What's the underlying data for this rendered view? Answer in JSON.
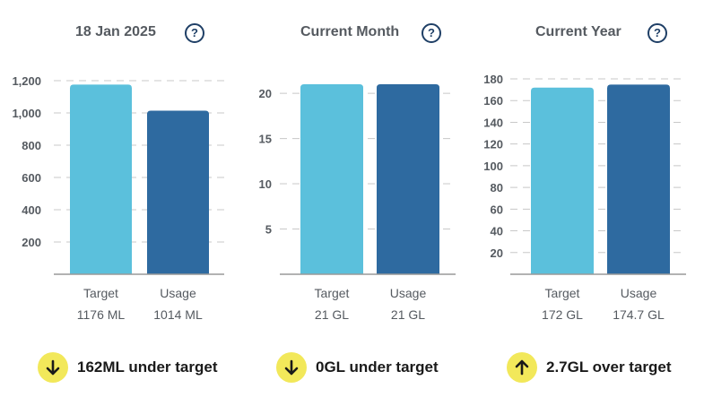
{
  "colors": {
    "target": "#5bc0dc",
    "usage": "#2e6aa0",
    "grid": "#c8c8c8",
    "axis": "#999999",
    "badge": "#f2e85a"
  },
  "panels": [
    {
      "title": "18 Jan 2025",
      "help_icon": "question-circle-icon",
      "chart_data": {
        "type": "bar",
        "categories": [
          "Target",
          "Usage"
        ],
        "values": [
          1176,
          1014
        ],
        "value_labels": [
          "1176 ML",
          "1014 ML"
        ],
        "yticks": [
          200,
          400,
          600,
          800,
          1000,
          1200
        ],
        "ytick_labels": [
          "200",
          "400",
          "600",
          "800",
          "1,000",
          "1,200"
        ],
        "ylim": [
          0,
          1200
        ]
      },
      "summary": {
        "direction": "down",
        "icon": "arrow-down-icon",
        "text": "162ML under target"
      }
    },
    {
      "title": "Current Month",
      "help_icon": "question-circle-icon",
      "chart_data": {
        "type": "bar",
        "categories": [
          "Target",
          "Usage"
        ],
        "values": [
          21,
          21
        ],
        "value_labels": [
          "21 GL",
          "21 GL"
        ],
        "yticks": [
          5,
          10,
          15,
          20
        ],
        "ytick_labels": [
          "5",
          "10",
          "15",
          "20"
        ],
        "ylim": [
          0,
          21
        ]
      },
      "summary": {
        "direction": "down",
        "icon": "arrow-down-icon",
        "text": "0GL under target"
      }
    },
    {
      "title": "Current Year",
      "help_icon": "question-circle-icon",
      "chart_data": {
        "type": "bar",
        "categories": [
          "Target",
          "Usage"
        ],
        "values": [
          172,
          174.7
        ],
        "value_labels": [
          "172 GL",
          "174.7 GL"
        ],
        "yticks": [
          20,
          40,
          60,
          80,
          100,
          120,
          140,
          160,
          180
        ],
        "ytick_labels": [
          "20",
          "40",
          "60",
          "80",
          "100",
          "120",
          "140",
          "160",
          "180"
        ],
        "ylim": [
          0,
          180
        ]
      },
      "summary": {
        "direction": "up",
        "icon": "arrow-up-icon",
        "text": "2.7GL over target"
      }
    }
  ]
}
